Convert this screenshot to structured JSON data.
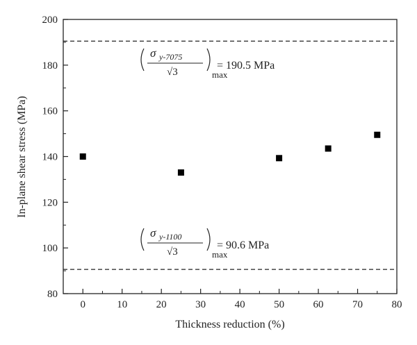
{
  "chart_data": {
    "type": "scatter",
    "title": "",
    "xlabel": "Thickness reduction (%)",
    "ylabel": "In-plane shear stress (MPa)",
    "xlim": [
      -5,
      80
    ],
    "ylim": [
      80,
      200
    ],
    "xticks": [
      0,
      10,
      20,
      30,
      40,
      50,
      60,
      70,
      80
    ],
    "yticks": [
      80,
      100,
      120,
      140,
      160,
      180,
      200
    ],
    "xtick_labels": [
      "0",
      "10",
      "20",
      "30",
      "40",
      "50",
      "60",
      "70",
      "80"
    ],
    "ytick_labels": [
      "80",
      "100",
      "120",
      "140",
      "160",
      "180",
      "200"
    ],
    "grid": false,
    "marker": "square",
    "marker_color": "#000000",
    "points": [
      {
        "x": 0,
        "y": 140
      },
      {
        "x": 25,
        "y": 133
      },
      {
        "x": 50,
        "y": 139.3
      },
      {
        "x": 62.5,
        "y": 143.5
      },
      {
        "x": 75,
        "y": 149.5
      }
    ],
    "reference_lines": [
      {
        "y": 190.5,
        "style": "dashed",
        "label_symbol": "σ",
        "label_subscript": "y-7075",
        "label_root": "√3",
        "label_max": "max",
        "label_value": "= 190.5 MPa"
      },
      {
        "y": 90.6,
        "style": "dashed",
        "label_symbol": "σ",
        "label_subscript": "y-1100",
        "label_root": "√3",
        "label_max": "max",
        "label_value": "= 90.6 MPa"
      }
    ]
  }
}
